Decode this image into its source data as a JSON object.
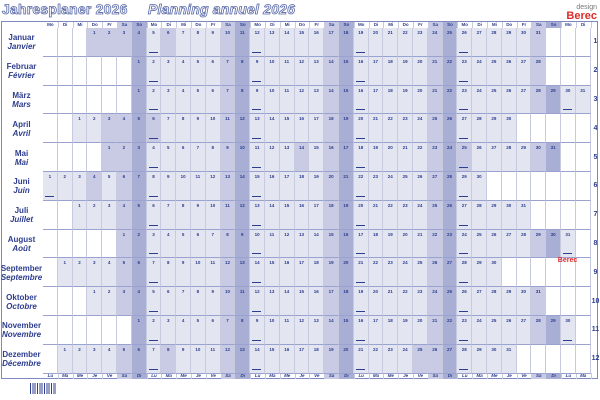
{
  "title_de": "Jahresplaner 2026",
  "title_fr": "Planning annuel 2026",
  "brand": {
    "small": "design",
    "name": "Berec"
  },
  "weekdays_de": [
    "Mo",
    "Di",
    "Mi",
    "Do",
    "Fr",
    "Sa",
    "So"
  ],
  "weekdays_fr": [
    "Lu",
    "Ma",
    "Me",
    "Je",
    "Ve",
    "Sa",
    "Di"
  ],
  "colors": {
    "text": "#2d3d8f",
    "weekday": "#e3e5f1",
    "saturday": "#c8cbe3",
    "sunday": "#a8aed4",
    "holiday": "#c8cbe3"
  },
  "months": [
    {
      "de": "Januar",
      "fr": "Janvier",
      "num": "1",
      "start_weekday": "Do",
      "days": 31,
      "holidays": [
        1,
        2,
        6
      ]
    },
    {
      "de": "Februar",
      "fr": "Février",
      "num": "2",
      "start_weekday": "So",
      "days": 28,
      "holidays": []
    },
    {
      "de": "März",
      "fr": "Mars",
      "num": "3",
      "start_weekday": "So",
      "days": 31,
      "holidays": []
    },
    {
      "de": "April",
      "fr": "Avril",
      "num": "4",
      "start_weekday": "Mi",
      "days": 30,
      "holidays": [
        3,
        6
      ]
    },
    {
      "de": "Mai",
      "fr": "Mai",
      "num": "5",
      "start_weekday": "Fr",
      "days": 31,
      "holidays": [
        1,
        14,
        25
      ]
    },
    {
      "de": "Juni",
      "fr": "Juin",
      "num": "6",
      "start_weekday": "Mo",
      "days": 30,
      "holidays": [
        4
      ]
    },
    {
      "de": "Juli",
      "fr": "Juillet",
      "num": "7",
      "start_weekday": "Mi",
      "days": 31,
      "holidays": []
    },
    {
      "de": "August",
      "fr": "Août",
      "num": "8",
      "start_weekday": "Sa",
      "days": 31,
      "holidays": [
        1,
        15
      ]
    },
    {
      "de": "September",
      "fr": "Septembre",
      "num": "9",
      "start_weekday": "Di",
      "days": 30,
      "holidays": [
        20
      ]
    },
    {
      "de": "Oktober",
      "fr": "Octobre",
      "num": "10",
      "start_weekday": "Do",
      "days": 31,
      "holidays": []
    },
    {
      "de": "November",
      "fr": "Novembre",
      "num": "11",
      "start_weekday": "So",
      "days": 30,
      "holidays": [
        1
      ]
    },
    {
      "de": "Dezember",
      "fr": "Décembre",
      "num": "12",
      "start_weekday": "Di",
      "days": 31,
      "holidays": [
        8,
        25,
        26
      ]
    }
  ]
}
